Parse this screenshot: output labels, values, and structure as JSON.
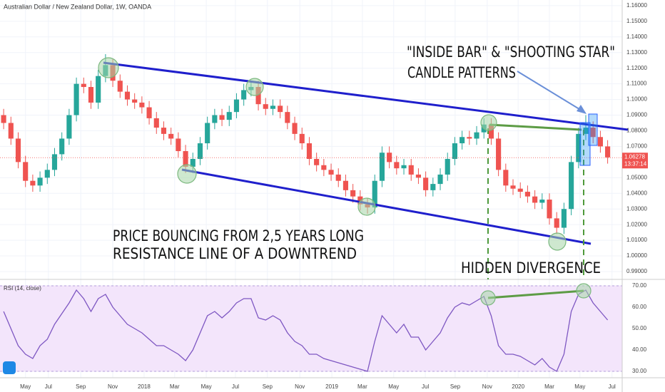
{
  "chart_data": [
    {
      "type": "candlestick",
      "title": "Australian Dollar / New Zealand Dollar, 1W, OANDA",
      "up_color": "#26a69a",
      "down_color": "#ef5350",
      "x": [
        1,
        3,
        5,
        7,
        9,
        11,
        13,
        15,
        17,
        19,
        21,
        23,
        25,
        27,
        29,
        31,
        33,
        35,
        37,
        39,
        41,
        43,
        45,
        47,
        49,
        51,
        53,
        55,
        57,
        59,
        61,
        63,
        65,
        67,
        69,
        71,
        73,
        75,
        77,
        79,
        81,
        83,
        85,
        87,
        89,
        91,
        93,
        95,
        97,
        99,
        101,
        103,
        105,
        107,
        109,
        111,
        113,
        115,
        117,
        119,
        121,
        123,
        125,
        127,
        129,
        131,
        133,
        135,
        137,
        139,
        141,
        143,
        145,
        147,
        149,
        151,
        153,
        155,
        157,
        159,
        161,
        163,
        165,
        167
      ],
      "candles": [
        [
          1.09,
          1.094,
          1.081,
          1.085
        ],
        [
          1.085,
          1.089,
          1.071,
          1.075
        ],
        [
          1.075,
          1.079,
          1.056,
          1.06
        ],
        [
          1.06,
          1.064,
          1.044,
          1.048
        ],
        [
          1.048,
          1.052,
          1.041,
          1.045
        ],
        [
          1.045,
          1.054,
          1.041,
          1.05
        ],
        [
          1.05,
          1.059,
          1.046,
          1.055
        ],
        [
          1.055,
          1.069,
          1.051,
          1.065
        ],
        [
          1.065,
          1.079,
          1.061,
          1.075
        ],
        [
          1.075,
          1.094,
          1.071,
          1.09
        ],
        [
          1.09,
          1.114,
          1.086,
          1.11
        ],
        [
          1.11,
          1.114,
          1.104,
          1.108
        ],
        [
          1.108,
          1.112,
          1.094,
          1.098
        ],
        [
          1.098,
          1.119,
          1.094,
          1.115
        ],
        [
          1.115,
          1.129,
          1.111,
          1.122
        ],
        [
          1.122,
          1.126,
          1.108,
          1.112
        ],
        [
          1.112,
          1.116,
          1.101,
          1.105
        ],
        [
          1.105,
          1.109,
          1.096,
          1.1
        ],
        [
          1.1,
          1.104,
          1.094,
          1.098
        ],
        [
          1.098,
          1.102,
          1.091,
          1.095
        ],
        [
          1.095,
          1.099,
          1.084,
          1.088
        ],
        [
          1.088,
          1.092,
          1.078,
          1.082
        ],
        [
          1.082,
          1.086,
          1.074,
          1.078
        ],
        [
          1.078,
          1.082,
          1.071,
          1.075
        ],
        [
          1.075,
          1.079,
          1.063,
          1.067
        ],
        [
          1.067,
          1.071,
          1.053,
          1.057
        ],
        [
          1.057,
          1.066,
          1.053,
          1.062
        ],
        [
          1.062,
          1.076,
          1.058,
          1.072
        ],
        [
          1.072,
          1.089,
          1.068,
          1.085
        ],
        [
          1.085,
          1.094,
          1.081,
          1.09
        ],
        [
          1.09,
          1.094,
          1.083,
          1.087
        ],
        [
          1.087,
          1.096,
          1.083,
          1.092
        ],
        [
          1.092,
          1.104,
          1.088,
          1.1
        ],
        [
          1.1,
          1.11,
          1.096,
          1.106
        ],
        [
          1.106,
          1.112,
          1.102,
          1.108
        ],
        [
          1.108,
          1.112,
          1.093,
          1.097
        ],
        [
          1.097,
          1.101,
          1.09,
          1.094
        ],
        [
          1.094,
          1.1,
          1.09,
          1.096
        ],
        [
          1.096,
          1.1,
          1.088,
          1.092
        ],
        [
          1.092,
          1.096,
          1.081,
          1.085
        ],
        [
          1.085,
          1.089,
          1.074,
          1.078
        ],
        [
          1.078,
          1.082,
          1.068,
          1.072
        ],
        [
          1.072,
          1.076,
          1.058,
          1.062
        ],
        [
          1.062,
          1.066,
          1.054,
          1.058
        ],
        [
          1.058,
          1.062,
          1.051,
          1.055
        ],
        [
          1.055,
          1.059,
          1.048,
          1.052
        ],
        [
          1.052,
          1.056,
          1.044,
          1.048
        ],
        [
          1.048,
          1.052,
          1.038,
          1.042
        ],
        [
          1.042,
          1.046,
          1.034,
          1.038
        ],
        [
          1.038,
          1.042,
          1.029,
          1.033
        ],
        [
          1.033,
          1.037,
          1.027,
          1.031
        ],
        [
          1.031,
          1.052,
          1.027,
          1.048
        ],
        [
          1.048,
          1.07,
          1.044,
          1.066
        ],
        [
          1.066,
          1.07,
          1.056,
          1.06
        ],
        [
          1.06,
          1.064,
          1.052,
          1.056
        ],
        [
          1.056,
          1.062,
          1.052,
          1.058
        ],
        [
          1.058,
          1.062,
          1.048,
          1.052
        ],
        [
          1.052,
          1.056,
          1.046,
          1.05
        ],
        [
          1.05,
          1.054,
          1.038,
          1.042
        ],
        [
          1.042,
          1.05,
          1.038,
          1.046
        ],
        [
          1.046,
          1.056,
          1.042,
          1.052
        ],
        [
          1.052,
          1.066,
          1.048,
          1.062
        ],
        [
          1.062,
          1.076,
          1.058,
          1.072
        ],
        [
          1.072,
          1.08,
          1.068,
          1.076
        ],
        [
          1.076,
          1.08,
          1.071,
          1.075
        ],
        [
          1.075,
          1.083,
          1.071,
          1.079
        ],
        [
          1.079,
          1.088,
          1.075,
          1.084
        ],
        [
          1.084,
          1.088,
          1.071,
          1.075
        ],
        [
          1.075,
          1.079,
          1.051,
          1.055
        ],
        [
          1.055,
          1.059,
          1.041,
          1.045
        ],
        [
          1.045,
          1.049,
          1.039,
          1.043
        ],
        [
          1.043,
          1.047,
          1.037,
          1.041
        ],
        [
          1.041,
          1.045,
          1.034,
          1.038
        ],
        [
          1.038,
          1.042,
          1.03,
          1.034
        ],
        [
          1.034,
          1.04,
          1.03,
          1.036
        ],
        [
          1.036,
          1.04,
          1.02,
          1.024
        ],
        [
          1.024,
          1.028,
          1.014,
          1.018
        ],
        [
          1.018,
          1.034,
          1.014,
          1.03
        ],
        [
          1.03,
          1.064,
          1.026,
          1.06
        ],
        [
          1.06,
          1.082,
          1.056,
          1.078
        ],
        [
          1.078,
          1.09,
          1.074,
          1.082
        ],
        [
          1.082,
          1.086,
          1.072,
          1.076
        ],
        [
          1.076,
          1.08,
          1.066,
          1.07
        ],
        [
          1.07,
          1.074,
          1.059,
          1.063
        ]
      ],
      "xlim": [
        0,
        171
      ],
      "xticks": [
        {
          "value": 7,
          "label": "May"
        },
        {
          "value": 13.3,
          "label": "Jul"
        },
        {
          "value": 22.2,
          "label": "Sep"
        },
        {
          "value": 31,
          "label": "Nov"
        },
        {
          "value": 39.6,
          "label": "2018"
        },
        {
          "value": 48,
          "label": "Mar"
        },
        {
          "value": 56.7,
          "label": "May"
        },
        {
          "value": 64.7,
          "label": "Jul"
        },
        {
          "value": 73.5,
          "label": "Sep"
        },
        {
          "value": 82.4,
          "label": "Nov"
        },
        {
          "value": 91.2,
          "label": "2019"
        },
        {
          "value": 99.6,
          "label": "Mar"
        },
        {
          "value": 108.2,
          "label": "May"
        },
        {
          "value": 116.9,
          "label": "Jul"
        },
        {
          "value": 125.1,
          "label": "Sep"
        },
        {
          "value": 133.9,
          "label": "Nov"
        },
        {
          "value": 142.4,
          "label": "2020"
        },
        {
          "value": 151,
          "label": "Mar"
        },
        {
          "value": 159.4,
          "label": "May"
        },
        {
          "value": 168.2,
          "label": "Jul"
        }
      ],
      "ylim": [
        0.9859,
        1.1636
      ],
      "yticks": [
        {
          "value": 1.16,
          "label": "1.16000"
        },
        {
          "value": 1.15,
          "label": "1.15000"
        },
        {
          "value": 1.14,
          "label": "1.14000"
        },
        {
          "value": 1.13,
          "label": "1.13000"
        },
        {
          "value": 1.12,
          "label": "1.12000"
        },
        {
          "value": 1.11,
          "label": "1.11000"
        },
        {
          "value": 1.1,
          "label": "1.10000"
        },
        {
          "value": 1.09,
          "label": "1.09000"
        },
        {
          "value": 1.08,
          "label": "1.08000"
        },
        {
          "value": 1.07,
          "label": "1.07000"
        },
        {
          "value": 1.05,
          "label": "1.05000"
        },
        {
          "value": 1.04,
          "label": "1.04000"
        },
        {
          "value": 1.03,
          "label": "1.03000"
        },
        {
          "value": 1.02,
          "label": "1.02000"
        },
        {
          "value": 1.01,
          "label": "1.01000"
        },
        {
          "value": 1.0,
          "label": "1.00000"
        },
        {
          "value": 0.99,
          "label": "0.99000"
        }
      ],
      "last_price": 1.06278,
      "countdown": "13:37:14",
      "annotations": [
        "\"INSIDE BAR\" & \"SHOOTING STAR\"",
        "CANDLE PATTERNS",
        "PRICE BOUNCING FROM 2,5 YEARS LONG",
        "RESISTANCE LINE OF A DOWNTREND",
        "HIDDEN DIVERGENCE"
      ]
    },
    {
      "type": "line",
      "title": "RSI (14, close)",
      "color": "#7e57c2",
      "values": [
        58,
        50,
        42,
        38,
        36,
        42,
        45,
        52,
        57,
        62,
        68,
        64,
        58,
        64,
        66,
        60,
        56,
        52,
        50,
        48,
        45,
        42,
        42,
        40,
        38,
        35,
        40,
        48,
        56,
        58,
        55,
        58,
        62,
        64,
        64,
        55,
        54,
        56,
        54,
        48,
        44,
        42,
        38,
        38,
        36,
        35,
        34,
        33,
        32,
        31,
        30,
        44,
        56,
        52,
        48,
        52,
        46,
        46,
        40,
        44,
        48,
        55,
        60,
        62,
        61,
        63,
        65,
        56,
        42,
        38,
        38,
        37,
        35,
        33,
        36,
        32,
        30,
        38,
        58,
        66,
        68,
        62,
        58,
        54
      ],
      "ylim": [
        27.67,
        71.67
      ],
      "yticks": [
        {
          "value": 70,
          "label": "70.00"
        },
        {
          "value": 60,
          "label": "60.00"
        },
        {
          "value": 50,
          "label": "50.00"
        },
        {
          "value": 40,
          "label": "40.00"
        },
        {
          "value": 30,
          "label": "30.00"
        }
      ]
    }
  ]
}
